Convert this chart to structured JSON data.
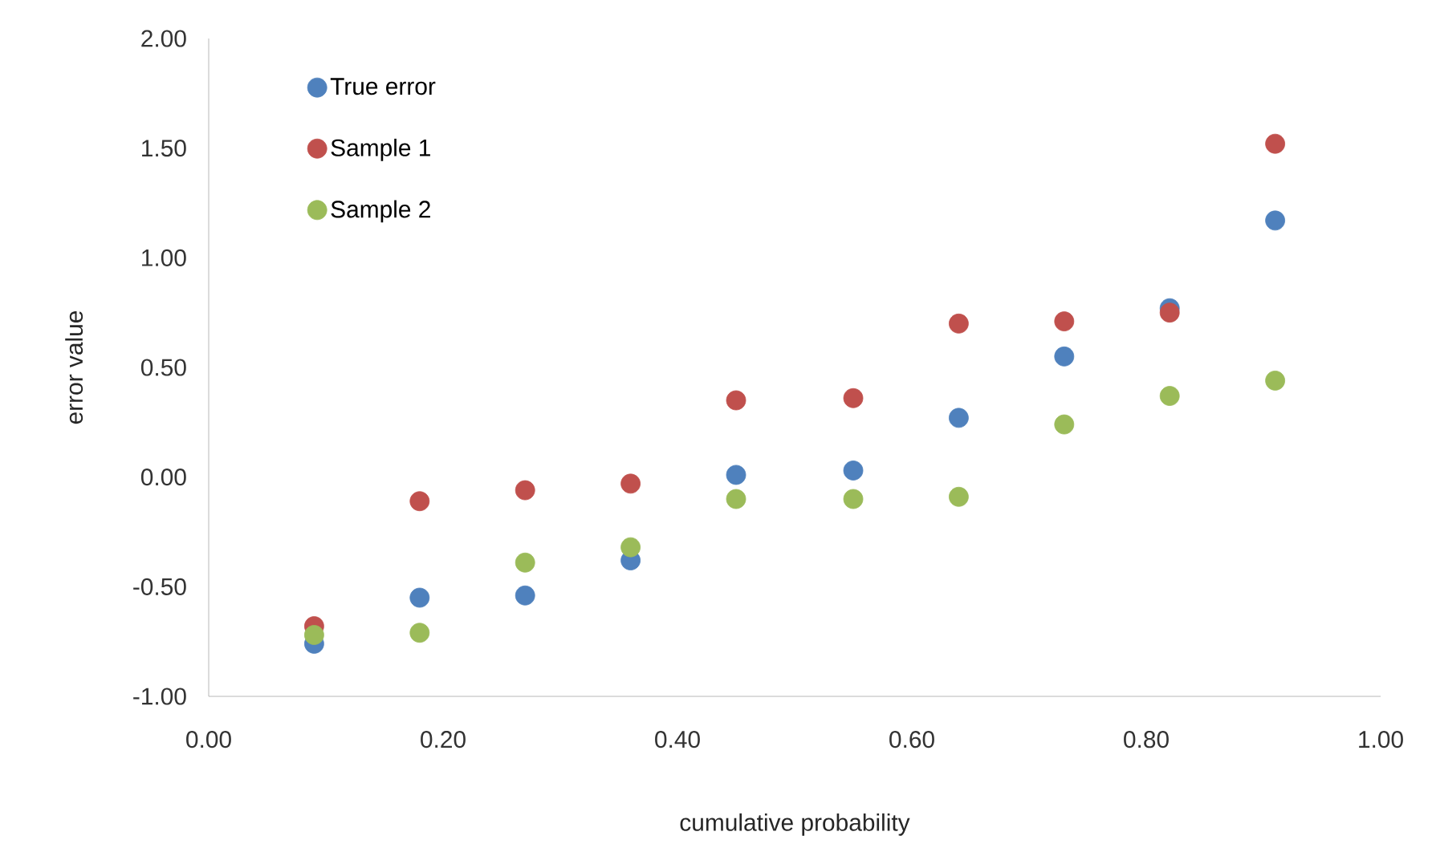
{
  "chart_data": {
    "type": "scatter",
    "xlabel": "cumulative probability",
    "ylabel": "error value",
    "xlim": [
      0,
      1
    ],
    "ylim": [
      -1,
      2
    ],
    "xticks": [
      {
        "value": 0,
        "label": "0.00"
      },
      {
        "value": 0.2,
        "label": "0.20"
      },
      {
        "value": 0.4,
        "label": "0.40"
      },
      {
        "value": 0.6,
        "label": "0.60"
      },
      {
        "value": 0.8,
        "label": "0.80"
      },
      {
        "value": 1,
        "label": "1.00"
      }
    ],
    "yticks": [
      {
        "value": -1,
        "label": "-1.00"
      },
      {
        "value": -0.5,
        "label": "-0.50"
      },
      {
        "value": 0,
        "label": "0.00"
      },
      {
        "value": 0.5,
        "label": "0.50"
      },
      {
        "value": 1,
        "label": "1.00"
      },
      {
        "value": 1.5,
        "label": "1.50"
      },
      {
        "value": 2,
        "label": "2.00"
      }
    ],
    "x": [
      0.09,
      0.18,
      0.27,
      0.36,
      0.45,
      0.55,
      0.64,
      0.73,
      0.82,
      0.91
    ],
    "marker": "circle",
    "legend": "top left",
    "grid": false,
    "series": [
      {
        "name": "True error",
        "color": "#4f81bd",
        "values": [
          -0.76,
          -0.55,
          -0.54,
          -0.38,
          0.01,
          0.03,
          0.27,
          0.55,
          0.77,
          1.17
        ]
      },
      {
        "name": "Sample 1",
        "color": "#c0504d",
        "values": [
          -0.68,
          -0.11,
          -0.06,
          -0.03,
          0.35,
          0.36,
          0.7,
          0.71,
          0.75,
          1.52
        ]
      },
      {
        "name": "Sample 2",
        "color": "#9bbb59",
        "values": [
          -0.72,
          -0.71,
          -0.39,
          -0.32,
          -0.1,
          -0.1,
          -0.09,
          0.24,
          0.37,
          0.44
        ]
      }
    ]
  }
}
